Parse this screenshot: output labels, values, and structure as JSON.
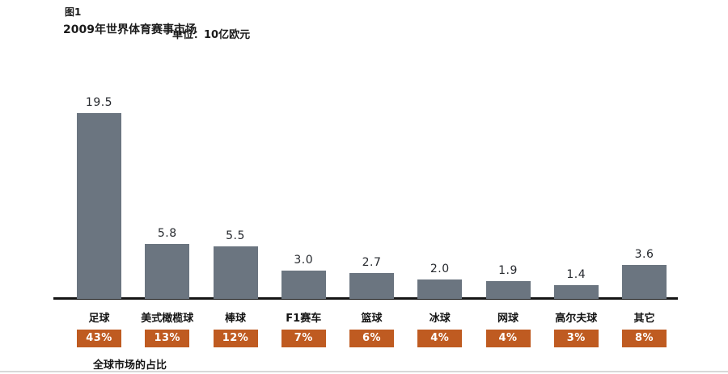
{
  "header": {
    "figure_label": "图1",
    "title": "2009年世界体育赛事市场",
    "unit_label": "单位：10亿欧元"
  },
  "chart_data": {
    "type": "bar",
    "title": "2009年世界体育赛事市场",
    "unit": "10亿欧元",
    "categories": [
      "足球",
      "美式橄榄球",
      "棒球",
      "F1赛车",
      "篮球",
      "冰球",
      "网球",
      "高尔夫球",
      "其它"
    ],
    "values": [
      19.5,
      5.8,
      5.5,
      3.0,
      2.7,
      2.0,
      1.9,
      1.4,
      3.6
    ],
    "value_labels": [
      "19.5",
      "5.8",
      "5.5",
      "3.0",
      "2.7",
      "2.0",
      "1.9",
      "1.4",
      "3.6"
    ],
    "percent_labels": [
      "43%",
      "13%",
      "12%",
      "7%",
      "6%",
      "4%",
      "4%",
      "3%",
      "8%"
    ],
    "ylim": [
      0,
      20
    ],
    "grid": false,
    "legend": "none",
    "bar_color": "#6b7580",
    "percent_box_color": "#bf5b21",
    "axis_color": "#141414",
    "footnote": "全球市场的占比"
  },
  "footer": {
    "share_caption": "全球市场的占比"
  }
}
